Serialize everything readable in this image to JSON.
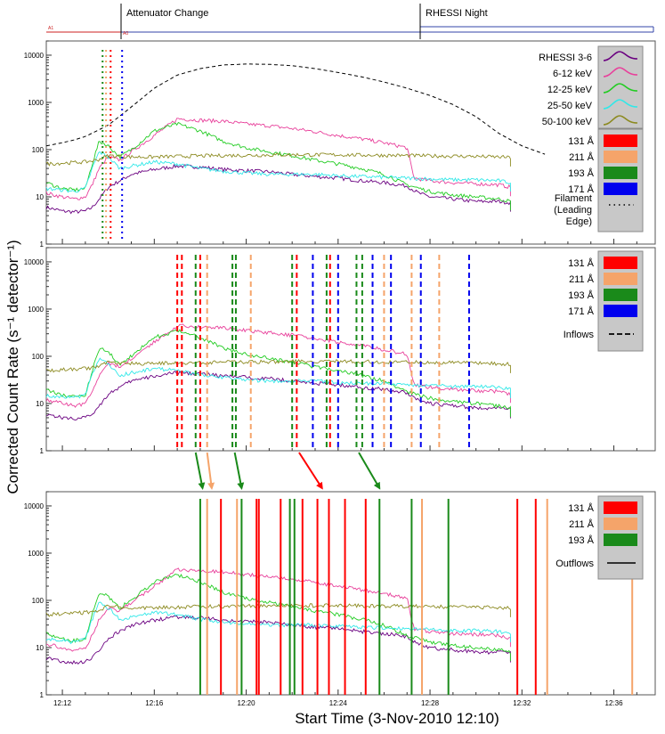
{
  "chart_data": {
    "type": "line",
    "yscale": "log",
    "ylim": [
      1,
      20000
    ],
    "xlim_minutes": [
      11.3,
      37.8
    ],
    "x_tick_labels": [
      "12:12",
      "12:16",
      "12:20",
      "12:24",
      "12:28",
      "12:32",
      "12:36"
    ],
    "x_tick_minutes": [
      12,
      16,
      20,
      24,
      28,
      32,
      36
    ],
    "y_tick_labels": [
      "1",
      "10",
      "100",
      "1000",
      "10000"
    ],
    "y_tick_values": [
      1,
      10,
      100,
      1000,
      10000
    ],
    "xlabel": "Start Time (3-Nov-2010 12:10)",
    "ylabel": "Corrected Count Rate (s⁻¹ detector⁻¹)",
    "top_bar": {
      "events": [
        {
          "label": "Attenuator Change",
          "minute": 13.8
        },
        {
          "label": "RHESSI Night",
          "minute": 27.3
        }
      ],
      "tiny_label_left": "A1",
      "tiny_label_mid": "A0"
    },
    "series": [
      {
        "name": "3-6",
        "color": "#6a0080",
        "x": [
          11.3,
          12,
          12.5,
          13,
          13.3,
          13.6,
          14,
          14.5,
          15,
          16,
          17,
          18,
          19,
          20,
          21,
          22,
          23,
          24,
          25,
          26,
          27,
          27.5,
          28,
          29,
          30,
          31,
          31.5
        ],
        "values": [
          6,
          5,
          4.8,
          5,
          6,
          9,
          16,
          22,
          30,
          38,
          45,
          43,
          38,
          36,
          34,
          30,
          27,
          25,
          22,
          20,
          17,
          12,
          10,
          9,
          8,
          8,
          7.5
        ]
      },
      {
        "name": "6-12 keV",
        "color": "#e8409b",
        "x": [
          11.3,
          12,
          12.5,
          13,
          13.3,
          13.6,
          14,
          14.5,
          15,
          16,
          17,
          18,
          19,
          20,
          21,
          22,
          23,
          24,
          25,
          26,
          27,
          27.3,
          28,
          29,
          30,
          31,
          31.5
        ],
        "values": [
          12,
          10,
          9,
          10,
          18,
          40,
          70,
          60,
          90,
          200,
          450,
          420,
          400,
          350,
          320,
          280,
          240,
          200,
          170,
          140,
          110,
          25,
          22,
          20,
          19,
          18,
          16
        ]
      },
      {
        "name": "12-25 keV",
        "color": "#22cc22",
        "x": [
          11.3,
          12,
          12.5,
          13,
          13.3,
          13.6,
          14,
          14.5,
          15,
          16,
          17,
          18,
          19,
          20,
          21,
          22,
          23,
          24,
          25,
          26,
          27,
          28,
          29,
          30,
          31,
          31.5
        ],
        "values": [
          20,
          15,
          14,
          15,
          50,
          150,
          120,
          70,
          100,
          250,
          350,
          250,
          150,
          110,
          90,
          75,
          60,
          50,
          40,
          30,
          18,
          13,
          11,
          10,
          9,
          8
        ]
      },
      {
        "name": "25-50 keV",
        "color": "#30e8e8",
        "x": [
          11.3,
          12,
          12.5,
          13,
          13.3,
          13.6,
          14,
          14.5,
          15,
          16,
          17,
          18,
          19,
          20,
          21,
          22,
          23,
          24,
          25,
          26,
          27,
          28,
          29,
          30,
          31,
          31.5
        ],
        "values": [
          15,
          14,
          13,
          15,
          40,
          90,
          70,
          40,
          45,
          55,
          50,
          40,
          35,
          32,
          30,
          30,
          30,
          28,
          27,
          26,
          25,
          24,
          23,
          23,
          22,
          20
        ]
      },
      {
        "name": "50-100 keV",
        "color": "#8c8a20",
        "x": [
          11.3,
          12,
          13,
          13.5,
          14,
          15,
          16,
          17,
          18,
          19,
          20,
          21,
          22,
          23,
          24,
          25,
          26,
          27,
          28,
          29,
          30,
          31,
          31.5
        ],
        "values": [
          50,
          52,
          55,
          60,
          75,
          70,
          70,
          72,
          74,
          75,
          76,
          77,
          78,
          78,
          78,
          77,
          76,
          75,
          74,
          73,
          72,
          70,
          68
        ]
      }
    ],
    "filament_dashed_curve": {
      "x": [
        11.3,
        12,
        12.5,
        13,
        13.5,
        14,
        15,
        16,
        17,
        18,
        19,
        20,
        21,
        22,
        23,
        24,
        25,
        26,
        27,
        28,
        29,
        30,
        31,
        32,
        33
      ],
      "values": [
        120,
        140,
        160,
        190,
        250,
        330,
        800,
        2000,
        3800,
        5200,
        6200,
        6500,
        6400,
        6000,
        5200,
        4300,
        3500,
        2700,
        2000,
        1400,
        900,
        500,
        220,
        120,
        80
      ]
    },
    "legend_main": [
      {
        "label": "RHESSI  3-6",
        "color": "#6a0080"
      },
      {
        "label": "6-12 keV",
        "color": "#e8409b"
      },
      {
        "label": "12-25 keV",
        "color": "#22cc22"
      },
      {
        "label": "25-50 keV",
        "color": "#30e8e8"
      },
      {
        "label": "50-100 keV",
        "color": "#8c8a20"
      }
    ],
    "wavelengths": [
      {
        "label": "131 Å",
        "color": "#ff0000"
      },
      {
        "label": "211 Å",
        "color": "#f5a46a"
      },
      {
        "label": "193 Å",
        "color": "#1a8a1a"
      },
      {
        "label": "171 Å",
        "color": "#0000ee"
      }
    ],
    "filament_label": "Filament (Leading Edge)",
    "inflows_label": "Inflows",
    "outflows_label": "Outflows",
    "panel1_filament_markers": [
      {
        "minute": 13.75,
        "color": "#1a8a1a"
      },
      {
        "minute": 13.9,
        "color": "#f5a46a"
      },
      {
        "minute": 14.1,
        "color": "#ff0000"
      },
      {
        "minute": 14.6,
        "color": "#0000ee"
      }
    ],
    "panel2_inflows": [
      {
        "minute": 17.0,
        "color": "#ff0000"
      },
      {
        "minute": 17.2,
        "color": "#ff0000"
      },
      {
        "minute": 17.8,
        "color": "#1a8a1a"
      },
      {
        "minute": 18.0,
        "color": "#ff0000"
      },
      {
        "minute": 18.3,
        "color": "#f5a46a"
      },
      {
        "minute": 19.4,
        "color": "#1a8a1a"
      },
      {
        "minute": 19.55,
        "color": "#1a8a1a"
      },
      {
        "minute": 20.2,
        "color": "#f5a46a"
      },
      {
        "minute": 22.0,
        "color": "#1a8a1a"
      },
      {
        "minute": 22.2,
        "color": "#ff0000"
      },
      {
        "minute": 22.9,
        "color": "#0000ee"
      },
      {
        "minute": 23.5,
        "color": "#1a8a1a"
      },
      {
        "minute": 23.65,
        "color": "#ff0000"
      },
      {
        "minute": 24.0,
        "color": "#0000ee"
      },
      {
        "minute": 24.8,
        "color": "#1a8a1a"
      },
      {
        "minute": 25.05,
        "color": "#1a8a1a"
      },
      {
        "minute": 25.5,
        "color": "#0000ee"
      },
      {
        "minute": 26.0,
        "color": "#f5a46a"
      },
      {
        "minute": 26.3,
        "color": "#0000ee"
      },
      {
        "minute": 27.2,
        "color": "#f5a46a"
      },
      {
        "minute": 27.6,
        "color": "#0000ee"
      },
      {
        "minute": 28.4,
        "color": "#f5a46a"
      },
      {
        "minute": 29.7,
        "color": "#0000ee"
      }
    ],
    "panel3_outflows": [
      {
        "minute": 18.0,
        "color": "#1a8a1a"
      },
      {
        "minute": 18.3,
        "color": "#f5a46a"
      },
      {
        "minute": 18.9,
        "color": "#ff0000"
      },
      {
        "minute": 19.6,
        "color": "#f5a46a"
      },
      {
        "minute": 19.8,
        "color": "#1a8a1a"
      },
      {
        "minute": 20.45,
        "color": "#ff0000"
      },
      {
        "minute": 20.55,
        "color": "#ff0000"
      },
      {
        "minute": 21.5,
        "color": "#ff0000"
      },
      {
        "minute": 21.9,
        "color": "#1a8a1a"
      },
      {
        "minute": 22.1,
        "color": "#1a8a1a"
      },
      {
        "minute": 22.45,
        "color": "#ff0000"
      },
      {
        "minute": 23.1,
        "color": "#ff0000"
      },
      {
        "minute": 23.6,
        "color": "#ff0000"
      },
      {
        "minute": 24.3,
        "color": "#ff0000"
      },
      {
        "minute": 25.2,
        "color": "#ff0000"
      },
      {
        "minute": 25.8,
        "color": "#1a8a1a"
      },
      {
        "minute": 27.2,
        "color": "#1a8a1a"
      },
      {
        "minute": 27.65,
        "color": "#f5a46a"
      },
      {
        "minute": 28.8,
        "color": "#1a8a1a"
      },
      {
        "minute": 31.8,
        "color": "#ff0000"
      },
      {
        "minute": 32.6,
        "color": "#ff0000"
      },
      {
        "minute": 33.1,
        "color": "#f5a46a"
      },
      {
        "minute": 36.8,
        "color": "#f5a46a"
      }
    ],
    "connector_arrows": [
      {
        "from_minute": 17.8,
        "to_minute": 18.1,
        "color": "#1a8a1a"
      },
      {
        "from_minute": 18.3,
        "to_minute": 18.5,
        "color": "#f5a46a"
      },
      {
        "from_minute": 19.5,
        "to_minute": 19.8,
        "color": "#1a8a1a"
      },
      {
        "from_minute": 22.3,
        "to_minute": 23.3,
        "color": "#ff0000"
      },
      {
        "from_minute": 24.9,
        "to_minute": 25.8,
        "color": "#1a8a1a"
      }
    ]
  }
}
